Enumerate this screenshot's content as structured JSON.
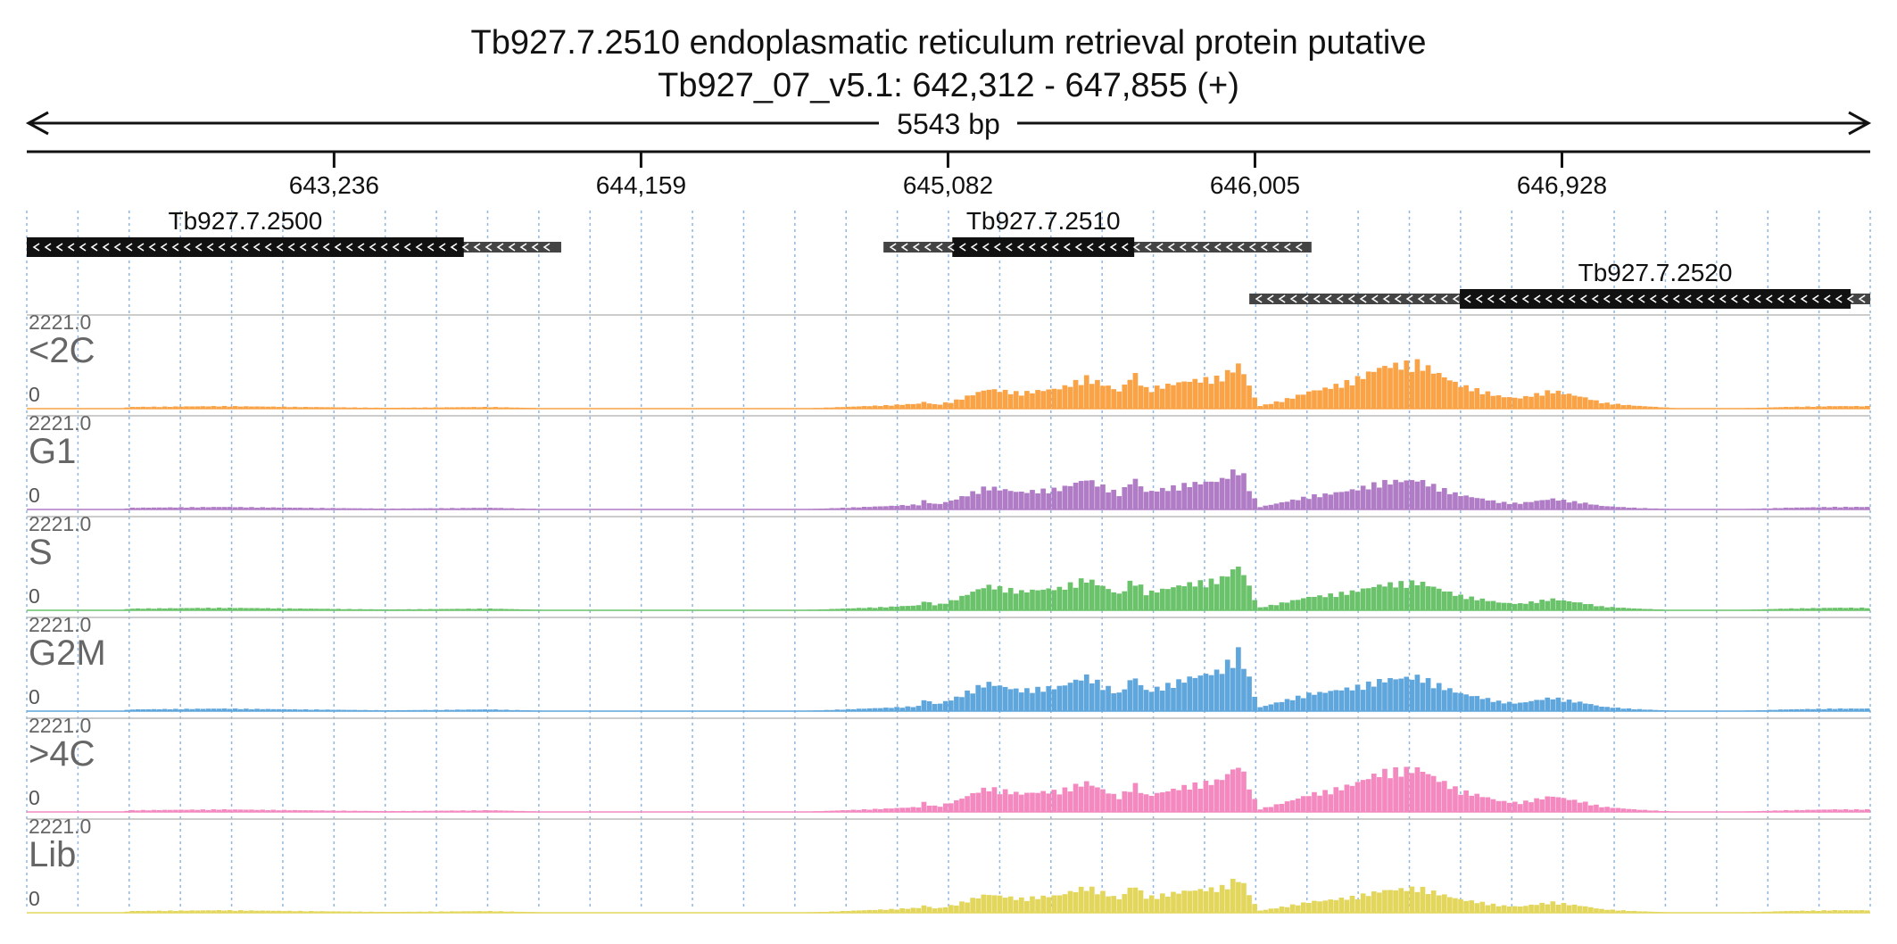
{
  "chart_data": {
    "type": "bar",
    "title": "Tb927.7.2510  endoplasmatic reticulum retrieval protein  putative",
    "subtitle": "Tb927_07_v5.1: 642,312 - 647,855 (+)",
    "region": {
      "chrom": "Tb927_07_v5.1",
      "start": 642312,
      "end": 647855,
      "strand": "+"
    },
    "length_label": "5543 bp",
    "x_ticks": [
      {
        "pos": 643236,
        "label": "643,236"
      },
      {
        "pos": 644159,
        "label": "644,159"
      },
      {
        "pos": 645082,
        "label": "645,082"
      },
      {
        "pos": 646005,
        "label": "646,005"
      },
      {
        "pos": 646928,
        "label": "646,928"
      }
    ],
    "grid": true,
    "ylim": [
      0,
      2221.0
    ],
    "y_max_label": "2221.0",
    "y_min_label": "0",
    "genes": [
      {
        "name": "Tb927.7.2500",
        "row": 0,
        "start": 642312,
        "end": 643919,
        "cds_start": 642312,
        "cds_end": 643626,
        "strand": "-"
      },
      {
        "name": "Tb927.7.2510",
        "row": 0,
        "start": 644888,
        "end": 646175,
        "cds_start": 645095,
        "cds_end": 645642,
        "strand": "-"
      },
      {
        "name": "Tb927.7.2520",
        "row": 1,
        "start": 645988,
        "end": 647855,
        "cds_start": 646621,
        "cds_end": 647796,
        "strand": "-"
      }
    ],
    "coverage_profile": {
      "x": [
        642312,
        642600,
        642620,
        642900,
        643400,
        643700,
        643710,
        643920,
        644200,
        644600,
        644700,
        644900,
        645000,
        645050,
        645080,
        645100,
        645200,
        645300,
        645420,
        645500,
        645550,
        645600,
        645640,
        645680,
        645800,
        645900,
        645960,
        646005,
        646020,
        646100,
        646180,
        646200,
        646300,
        646400,
        646500,
        646620,
        646700,
        646740,
        646800,
        646900,
        647000,
        647050,
        647150,
        647300,
        647400,
        647520,
        647600,
        647750,
        647855
      ],
      "shape": [
        0,
        0,
        0.02,
        0.03,
        0.01,
        0.02,
        0.02,
        0,
        0,
        0,
        0.01,
        0.04,
        0.06,
        0.03,
        0.05,
        0.06,
        0.15,
        0.12,
        0.16,
        0.25,
        0.2,
        0.14,
        0.3,
        0.16,
        0.22,
        0.24,
        0.34,
        0.08,
        0.02,
        0.06,
        0.1,
        0.1,
        0.13,
        0.18,
        0.21,
        0.12,
        0.09,
        0.07,
        0.06,
        0.11,
        0.07,
        0.04,
        0.02,
        0,
        0,
        0.01,
        0.02,
        0.03,
        0.03
      ]
    },
    "series": [
      {
        "name": "<2C",
        "color": "#f9a346",
        "values": [
          0.07,
          0.08,
          0.03,
          0.07,
          0.65,
          0.85,
          0.38,
          0.42,
          0.48,
          0.42,
          0.48,
          1.0,
          0.7,
          0.55,
          0.61,
          0.65
        ]
      },
      {
        "name": "G1",
        "color": "#b07cc6",
        "values": [
          0.02,
          0.03,
          0.03,
          0.08,
          0.2,
          0.3,
          0.55,
          0.65,
          0.55,
          0.35,
          0.45,
          0.6,
          0.35,
          0.25,
          0.18,
          0.04
        ]
      },
      {
        "name": "S",
        "color": "#6ac26a",
        "values": [
          0.02,
          0.03,
          0.03,
          0.08,
          0.25,
          0.35,
          0.75,
          0.7,
          0.62,
          0.35,
          0.5,
          0.55,
          0.38,
          0.28,
          0.18,
          0.08
        ]
      },
      {
        "name": "G2M",
        "color": "#5fa6dc",
        "values": [
          0.05,
          0.06,
          0.05,
          0.12,
          0.4,
          0.6,
          0.95,
          0.98,
          0.7,
          0.4,
          0.75,
          0.7,
          0.5,
          0.35,
          0.25,
          0.08
        ]
      },
      {
        "name": ">4C",
        "color": "#f489c0",
        "values": [
          0.02,
          0.03,
          0.03,
          0.1,
          0.3,
          0.55,
          0.8,
          0.72,
          0.6,
          0.3,
          0.55,
          0.95,
          0.6,
          0.45,
          0.3,
          0.05
        ]
      },
      {
        "name": "Lib",
        "color": "#e3d65c",
        "values": [
          0.03,
          0.04,
          0.03,
          0.1,
          0.3,
          0.45,
          0.6,
          0.52,
          0.42,
          0.3,
          0.35,
          0.45,
          0.35,
          0.25,
          0.2,
          0.07
        ]
      }
    ]
  }
}
